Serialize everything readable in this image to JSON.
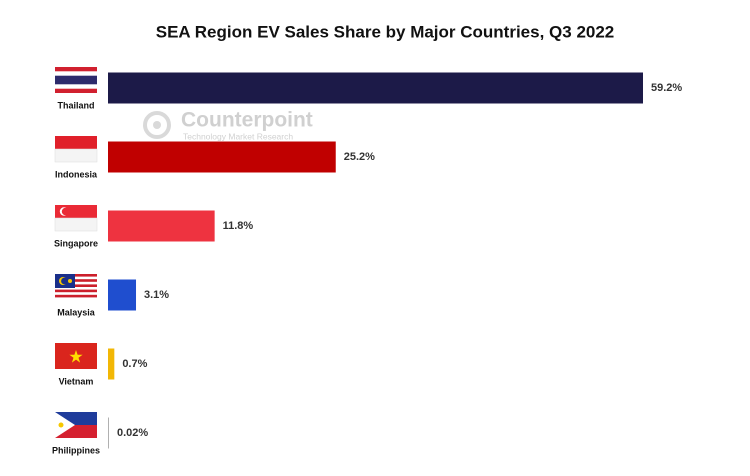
{
  "chart_data": {
    "type": "hbar",
    "title": "SEA Region EV Sales Share by Major Countries, Q3 2022",
    "categories": [
      "Thailand",
      "Indonesia",
      "Singapore",
      "Malaysia",
      "Vietnam",
      "Philippines"
    ],
    "values": [
      59.2,
      25.2,
      11.8,
      3.1,
      0.7,
      0.02
    ],
    "value_labels": [
      "59.2%",
      "25.2%",
      "11.8%",
      "3.1%",
      "0.7%",
      "0.02%"
    ],
    "colors": [
      "#1c1a48",
      "#c00000",
      "#ee3340",
      "#1f4ecf",
      "#f2b705",
      "#b0b0b0"
    ],
    "watermark": {
      "name": "Counterpoint",
      "tagline": "Technology Market Research"
    }
  }
}
